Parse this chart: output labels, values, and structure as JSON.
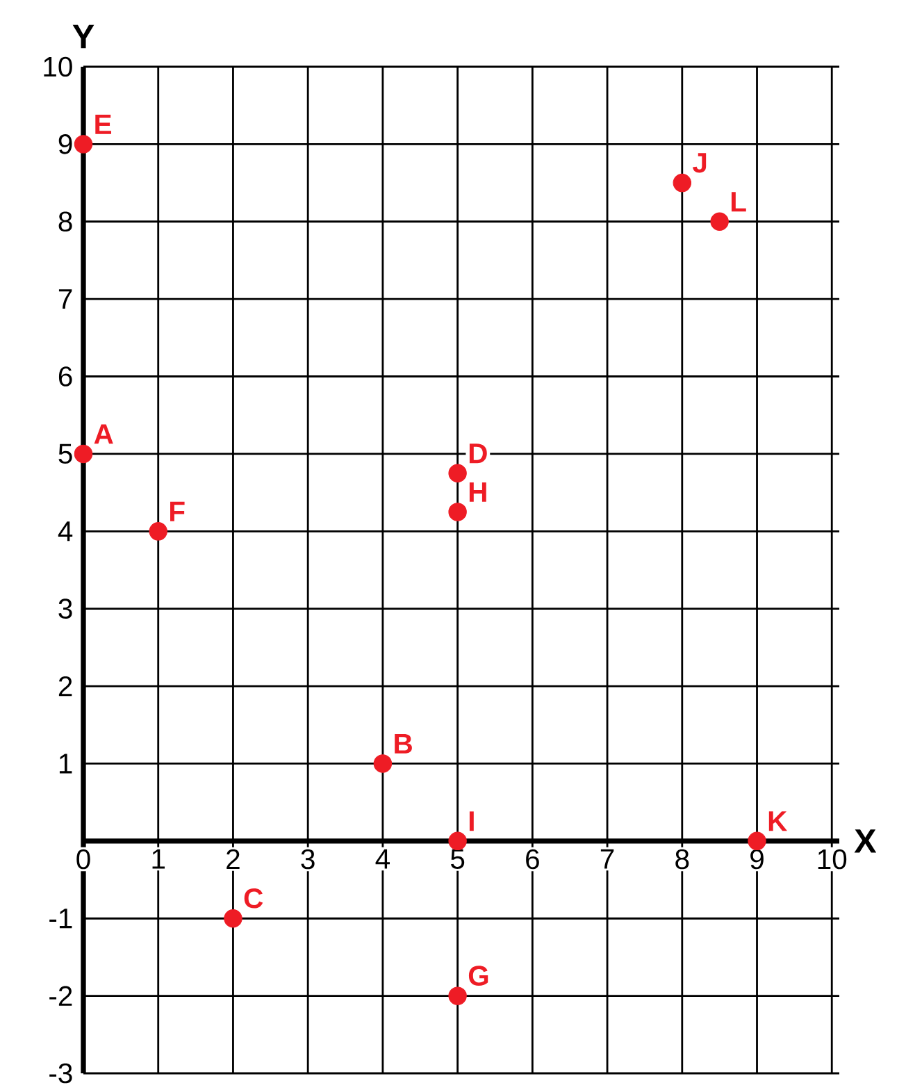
{
  "chart_data": {
    "type": "scatter",
    "xlabel": "X",
    "ylabel": "Y",
    "x": [
      0,
      4,
      2,
      5,
      0,
      1,
      5,
      5,
      5,
      8,
      9,
      8.5
    ],
    "values": [
      5,
      1,
      -1,
      4.75,
      9,
      4,
      -2,
      4.25,
      0,
      8.5,
      0,
      8
    ],
    "color": "#ee1c25",
    "marker": "circle",
    "grid": true,
    "xlim": [
      0,
      10.1
    ],
    "ylim": [
      -3,
      10
    ],
    "xticks": [
      0,
      1,
      2,
      3,
      4,
      5,
      6,
      7,
      8,
      9,
      10
    ],
    "yticks": [
      -3,
      -2,
      -1,
      1,
      2,
      3,
      4,
      5,
      6,
      7,
      8,
      9,
      10
    ],
    "annotations": [
      {
        "text": "A",
        "x": 0,
        "y": 5
      },
      {
        "text": "B",
        "x": 4,
        "y": 1
      },
      {
        "text": "C",
        "x": 2,
        "y": -1
      },
      {
        "text": "D",
        "x": 5,
        "y": 4.75
      },
      {
        "text": "E",
        "x": 0,
        "y": 9
      },
      {
        "text": "F",
        "x": 1,
        "y": 4
      },
      {
        "text": "G",
        "x": 5,
        "y": -2
      },
      {
        "text": "H",
        "x": 5,
        "y": 4.25
      },
      {
        "text": "I",
        "x": 5,
        "y": 0
      },
      {
        "text": "J",
        "x": 8,
        "y": 8.5
      },
      {
        "text": "K",
        "x": 9,
        "y": 0
      },
      {
        "text": "L",
        "x": 8.5,
        "y": 8
      }
    ]
  }
}
